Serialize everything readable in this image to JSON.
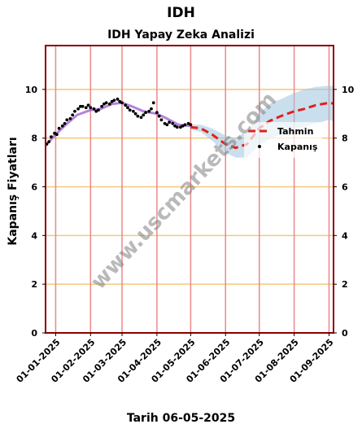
{
  "page_title": "IDH",
  "footer": "Tarih 06-05-2025",
  "watermark": "www.uscmarkets.com",
  "colors": {
    "frame": "#8b0000",
    "vline": "#e88a8a",
    "hgrid": "#f5c77a",
    "forecast": "#e0201c",
    "band": "#9ec5e0",
    "fit": "#9b59d0",
    "points": "#000000"
  },
  "chart_data": {
    "type": "line",
    "title": "IDH Yapay Zeka Analizi",
    "ylabel": "Kapanış Fiyatları",
    "xlabel": "",
    "ylim": [
      0,
      11.8
    ],
    "xlim": [
      "2024-12-23",
      "2025-09-05"
    ],
    "y_ticks": [
      0,
      2,
      4,
      6,
      8,
      10
    ],
    "x_ticks": [
      "01-01-2025",
      "01-02-2025",
      "01-03-2025",
      "01-04-2025",
      "01-05-2025",
      "01-06-2025",
      "01-07-2025",
      "01-08-2025",
      "01-09-2025"
    ],
    "vertical_lines": [
      "2025-01-01",
      "2025-02-01",
      "2025-03-01",
      "2025-04-01",
      "2025-05-01",
      "2025-06-01",
      "2025-07-01",
      "2025-08-01",
      "2025-09-01"
    ],
    "grid": true,
    "legend_position": "right",
    "legend": [
      {
        "label": "Tahmin",
        "style": "dashed-line"
      },
      {
        "label": "Kapanış",
        "style": "dot"
      }
    ],
    "series": [
      {
        "name": "Kapanış",
        "kind": "points",
        "x": [
          "2024-12-24",
          "2024-12-26",
          "2024-12-28",
          "2024-12-31",
          "2025-01-02",
          "2025-01-04",
          "2025-01-07",
          "2025-01-09",
          "2025-01-11",
          "2025-01-14",
          "2025-01-16",
          "2025-01-18",
          "2025-01-21",
          "2025-01-23",
          "2025-01-25",
          "2025-01-28",
          "2025-01-30",
          "2025-02-01",
          "2025-02-04",
          "2025-02-06",
          "2025-02-08",
          "2025-02-11",
          "2025-02-13",
          "2025-02-15",
          "2025-02-18",
          "2025-02-20",
          "2025-02-22",
          "2025-02-25",
          "2025-02-27",
          "2025-03-01",
          "2025-03-04",
          "2025-03-06",
          "2025-03-08",
          "2025-03-11",
          "2025-03-13",
          "2025-03-15",
          "2025-03-18",
          "2025-03-20",
          "2025-03-22",
          "2025-03-25",
          "2025-03-27",
          "2025-03-29",
          "2025-04-01",
          "2025-04-03",
          "2025-04-05",
          "2025-04-08",
          "2025-04-10",
          "2025-04-12",
          "2025-04-15",
          "2025-04-17",
          "2025-04-19",
          "2025-04-22",
          "2025-04-24",
          "2025-04-26",
          "2025-04-29",
          "2025-05-01"
        ],
        "values": [
          7.75,
          7.85,
          8.05,
          8.2,
          8.15,
          8.4,
          8.5,
          8.6,
          8.75,
          8.8,
          8.95,
          9.1,
          9.2,
          9.3,
          9.3,
          9.25,
          9.35,
          9.25,
          9.2,
          9.1,
          9.15,
          9.3,
          9.4,
          9.45,
          9.4,
          9.5,
          9.55,
          9.6,
          9.5,
          9.45,
          9.35,
          9.25,
          9.15,
          9.1,
          9.0,
          8.9,
          8.85,
          8.95,
          9.05,
          9.1,
          9.2,
          9.45,
          9.05,
          8.9,
          8.75,
          8.6,
          8.55,
          8.65,
          8.6,
          8.5,
          8.45,
          8.45,
          8.5,
          8.55,
          8.6,
          8.55
        ]
      },
      {
        "name": "",
        "kind": "fit-line",
        "x": [
          "2024-12-24",
          "2025-01-01",
          "2025-01-10",
          "2025-01-20",
          "2025-02-01",
          "2025-02-10",
          "2025-02-20",
          "2025-03-01",
          "2025-03-10",
          "2025-03-20",
          "2025-04-01",
          "2025-04-10",
          "2025-04-20",
          "2025-05-01"
        ],
        "values": [
          7.75,
          8.15,
          8.55,
          8.95,
          9.15,
          9.2,
          9.4,
          9.45,
          9.3,
          9.1,
          9.0,
          8.8,
          8.55,
          8.5
        ]
      },
      {
        "name": "Tahmin",
        "kind": "forecast",
        "x": [
          "2025-05-01",
          "2025-05-10",
          "2025-05-20",
          "2025-06-01",
          "2025-06-10",
          "2025-06-20",
          "2025-07-01",
          "2025-07-10",
          "2025-07-20",
          "2025-08-01",
          "2025-08-10",
          "2025-08-20",
          "2025-09-01",
          "2025-09-05"
        ],
        "values": [
          8.45,
          8.4,
          8.15,
          7.75,
          7.6,
          7.75,
          8.4,
          8.7,
          8.9,
          9.1,
          9.2,
          9.35,
          9.45,
          9.42
        ],
        "upper": [
          8.55,
          8.55,
          8.4,
          8.1,
          8.0,
          8.3,
          9.0,
          9.4,
          9.6,
          9.85,
          10.0,
          10.1,
          10.15,
          10.15
        ],
        "lower": [
          8.35,
          8.25,
          7.9,
          7.4,
          7.2,
          7.2,
          7.7,
          7.95,
          8.15,
          8.35,
          8.45,
          8.6,
          8.75,
          8.7
        ]
      }
    ]
  }
}
